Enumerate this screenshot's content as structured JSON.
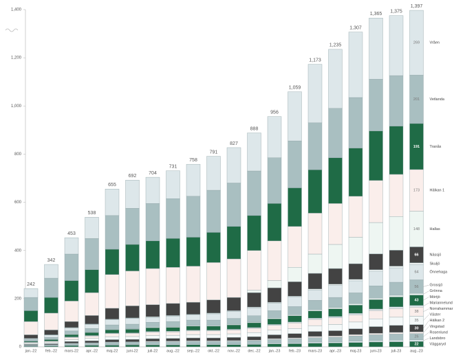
{
  "chart_data": {
    "type": "stacked_bar",
    "categories": [
      "jan.-22",
      "feb.-22",
      "mars-22",
      "apr.-22",
      "maj-22",
      "juni-22",
      "juli-22",
      "aug.-22",
      "sep.-22",
      "okt.-22",
      "nov.-22",
      "dec.-22",
      "jan.-23",
      "feb.-23",
      "mars-23",
      "apr.-23",
      "maj-23",
      "juni-23",
      "juli-23",
      "aug.-23"
    ],
    "totals": [
      242,
      342,
      453,
      538,
      655,
      692,
      704,
      731,
      758,
      791,
      827,
      888,
      956,
      1059,
      1173,
      1235,
      1307,
      1365,
      1375,
      1397
    ],
    "totals_labels": [
      "242",
      "342",
      "453",
      "538",
      "655",
      "692",
      "704",
      "731",
      "758",
      "791",
      "827",
      "888",
      "956",
      "1,059",
      "1,173",
      "1,235",
      "1,307",
      "1,365",
      "1,375",
      "1,397"
    ],
    "ylim": [
      0,
      1400
    ],
    "yticks": [
      0,
      200,
      400,
      600,
      800,
      {
        "value": 1000,
        "label": "1,000"
      },
      {
        "value": 1200,
        "label": "1,200"
      },
      {
        "value": 1400,
        "label": "1,400"
      }
    ],
    "series": [
      {
        "name": "Väggaryd",
        "color": "#1f6b46",
        "values": [
          2,
          3,
          5,
          6,
          7,
          8,
          8,
          8,
          9,
          9,
          9,
          10,
          12,
          13,
          15,
          16,
          18,
          20,
          21,
          22
        ]
      },
      {
        "name": "Landsbro",
        "color": "#dde7ea",
        "values": [
          1,
          1,
          2,
          2,
          2,
          2,
          3,
          3,
          3,
          3,
          3,
          3,
          4,
          4,
          5,
          5,
          6,
          6,
          7,
          7
        ]
      },
      {
        "name": "Rosenlund",
        "color": "#a9bfc1",
        "values": [
          3,
          4,
          6,
          7,
          9,
          9,
          9,
          10,
          10,
          10,
          11,
          12,
          14,
          16,
          18,
          19,
          21,
          24,
          25,
          26
        ]
      },
      {
        "name": "Vingstad",
        "color": "#faeeeb",
        "values": [
          1,
          1,
          2,
          2,
          2,
          2,
          3,
          3,
          3,
          3,
          3,
          3,
          4,
          4,
          5,
          5,
          6,
          6,
          7,
          7
        ]
      },
      {
        "name": "Hälkan 2",
        "color": "#434343",
        "values": [
          3,
          4,
          7,
          8,
          10,
          10,
          11,
          11,
          12,
          12,
          13,
          14,
          16,
          18,
          21,
          22,
          24,
          28,
          29,
          30
        ]
      },
      {
        "name": "Väster",
        "color": "#f4f8f8",
        "values": [
          4,
          5,
          8,
          10,
          12,
          12,
          13,
          13,
          14,
          14,
          15,
          17,
          19,
          21,
          24,
          26,
          28,
          32,
          34,
          35
        ]
      },
      {
        "name": "Norrahammar",
        "color": "#faeeeb",
        "values": [
          4,
          5,
          9,
          10,
          13,
          13,
          14,
          14,
          15,
          15,
          16,
          18,
          20,
          23,
          26,
          28,
          30,
          35,
          36,
          38
        ]
      },
      {
        "name": "Mariannelund",
        "color": "#dde7ea",
        "values": [
          1,
          1,
          2,
          2,
          2,
          2,
          3,
          3,
          3,
          3,
          3,
          3,
          4,
          4,
          5,
          5,
          6,
          6,
          7,
          7
        ]
      },
      {
        "name": "Mörtjö",
        "color": "#1f6b46",
        "values": [
          4,
          6,
          10,
          12,
          14,
          15,
          15,
          16,
          17,
          17,
          18,
          20,
          23,
          26,
          30,
          32,
          34,
          39,
          41,
          43
        ]
      },
      {
        "name": "Grönna",
        "color": "#eef6f2",
        "values": [
          1,
          1,
          2,
          2,
          2,
          2,
          3,
          3,
          3,
          3,
          3,
          3,
          4,
          4,
          5,
          5,
          6,
          6,
          7,
          7
        ]
      },
      {
        "name": "Grossjö",
        "color": "#a9bfc1",
        "values": [
          6,
          8,
          13,
          15,
          18,
          19,
          20,
          21,
          22,
          22,
          24,
          26,
          30,
          34,
          39,
          42,
          45,
          51,
          54,
          56
        ]
      },
      {
        "name": "Önnehaga",
        "color": "#dde7ea",
        "values": [
          4,
          10,
          12,
          17,
          22,
          24,
          20,
          22,
          21,
          26,
          29,
          33,
          31,
          39,
          42,
          50,
          50,
          61,
          60,
          64
        ]
      },
      {
        "name": "Skuljö",
        "color": "#f4f8f8",
        "values": [
          1,
          1,
          2,
          2,
          2,
          2,
          3,
          3,
          3,
          3,
          3,
          3,
          4,
          4,
          5,
          5,
          6,
          6,
          7,
          7
        ]
      },
      {
        "name": "Nässjö",
        "color": "#434343",
        "values": [
          15,
          20,
          25,
          35,
          45,
          50,
          50,
          50,
          50,
          55,
          55,
          60,
          60,
          60,
          65,
          65,
          65,
          66,
          66,
          66
        ]
      },
      {
        "name": "Hallas",
        "color": "#eef6f2",
        "values": [
          0,
          0,
          0,
          0,
          0,
          0,
          0,
          0,
          0,
          0,
          0,
          10,
          30,
          60,
          80,
          100,
          110,
          130,
          140,
          148
        ]
      },
      {
        "name": "Hälkan 1",
        "color": "#faeeeb",
        "values": [
          55,
          70,
          85,
          95,
          140,
          145,
          150,
          150,
          150,
          155,
          160,
          165,
          165,
          170,
          170,
          170,
          170,
          175,
          175,
          173
        ]
      },
      {
        "name": "Tranås",
        "color": "#1f6b46",
        "values": [
          45,
          65,
          85,
          95,
          105,
          110,
          115,
          120,
          120,
          125,
          135,
          145,
          155,
          160,
          180,
          190,
          200,
          205,
          200,
          191
        ]
      },
      {
        "name": "Vetlanda",
        "color": "#a9bfc1",
        "values": [
          55,
          80,
          110,
          130,
          140,
          150,
          155,
          165,
          170,
          175,
          180,
          185,
          190,
          195,
          195,
          205,
          210,
          215,
          210,
          201
        ]
      },
      {
        "name": "Vråen",
        "color": "#dde7ea",
        "values": [
          37,
          57,
          68,
          88,
          110,
          117,
          109,
          116,
          133,
          141,
          147,
          158,
          171,
          204,
          243,
          245,
          272,
          254,
          249,
          269
        ]
      }
    ]
  }
}
